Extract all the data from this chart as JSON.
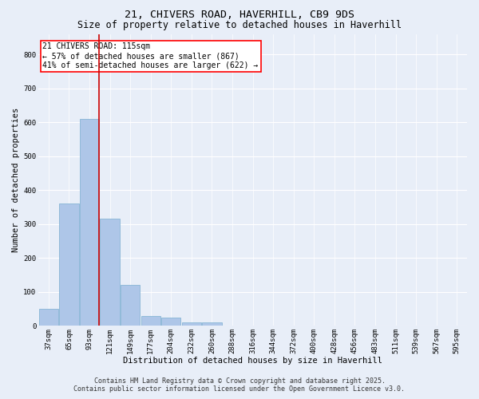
{
  "title_line1": "21, CHIVERS ROAD, HAVERHILL, CB9 9DS",
  "title_line2": "Size of property relative to detached houses in Haverhill",
  "xlabel": "Distribution of detached houses by size in Haverhill",
  "ylabel": "Number of detached properties",
  "footer_line1": "Contains HM Land Registry data © Crown copyright and database right 2025.",
  "footer_line2": "Contains public sector information licensed under the Open Government Licence v3.0.",
  "annotation_line1": "21 CHIVERS ROAD: 115sqm",
  "annotation_line2": "← 57% of detached houses are smaller (867)",
  "annotation_line3": "41% of semi-detached houses are larger (622) →",
  "bar_labels": [
    "37sqm",
    "65sqm",
    "93sqm",
    "121sqm",
    "149sqm",
    "177sqm",
    "204sqm",
    "232sqm",
    "260sqm",
    "288sqm",
    "316sqm",
    "344sqm",
    "372sqm",
    "400sqm",
    "428sqm",
    "456sqm",
    "483sqm",
    "511sqm",
    "539sqm",
    "567sqm",
    "595sqm"
  ],
  "bar_values": [
    50,
    360,
    610,
    315,
    120,
    30,
    25,
    10,
    10,
    0,
    0,
    0,
    0,
    0,
    0,
    0,
    0,
    0,
    0,
    0,
    0
  ],
  "bar_color": "#aec6e8",
  "bar_edge_color": "#7aaed0",
  "background_color": "#e8eef8",
  "grid_color": "#ffffff",
  "vline_color": "#cc0000",
  "ylim": [
    0,
    860
  ],
  "yticks": [
    0,
    100,
    200,
    300,
    400,
    500,
    600,
    700,
    800
  ],
  "title_fontsize": 9.5,
  "subtitle_fontsize": 8.5,
  "axis_label_fontsize": 7.5,
  "tick_fontsize": 6.5,
  "footer_fontsize": 6.0,
  "annotation_fontsize": 7.0
}
